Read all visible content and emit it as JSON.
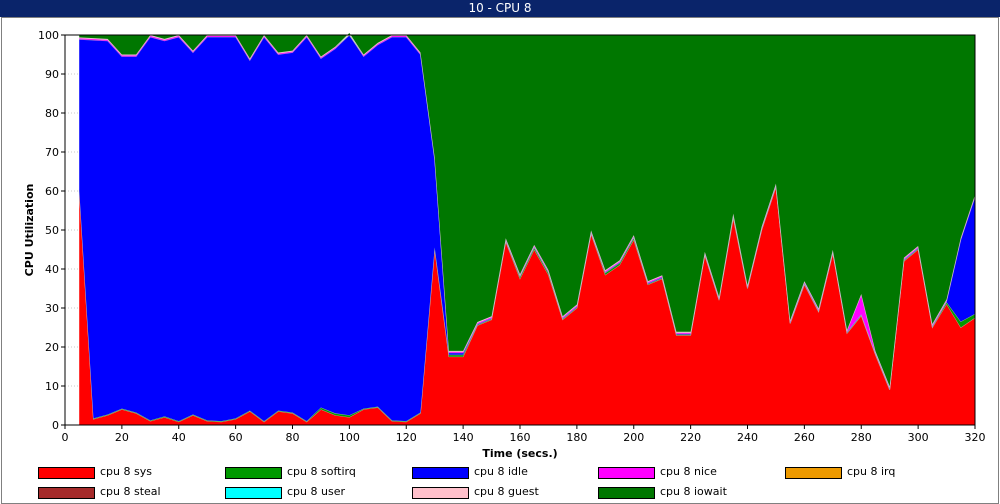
{
  "window": {
    "title": "10 - CPU 8"
  },
  "chart_data": {
    "type": "area",
    "title": "",
    "xlabel": "Time (secs.)",
    "ylabel": "CPU Utilization",
    "xlim": [
      0,
      320
    ],
    "ylim": [
      0,
      100
    ],
    "xticks": [
      0,
      20,
      40,
      60,
      80,
      100,
      120,
      140,
      160,
      180,
      200,
      220,
      240,
      260,
      280,
      300,
      320
    ],
    "yticks": [
      0,
      10,
      20,
      30,
      40,
      50,
      60,
      70,
      80,
      90,
      100
    ],
    "grid": true,
    "legend_position": "bottom",
    "stacked": true,
    "x": [
      5,
      10,
      15,
      20,
      25,
      30,
      35,
      40,
      45,
      50,
      55,
      60,
      65,
      70,
      75,
      80,
      85,
      90,
      95,
      100,
      105,
      110,
      115,
      120,
      125,
      130,
      135,
      140,
      145,
      150,
      155,
      160,
      165,
      170,
      175,
      180,
      185,
      190,
      195,
      200,
      205,
      210,
      215,
      220,
      225,
      230,
      235,
      240,
      245,
      250,
      255,
      260,
      265,
      270,
      275,
      280,
      285,
      290,
      295,
      300,
      305,
      310,
      315,
      320
    ],
    "series": [
      {
        "name": "cpu 8 sys",
        "color": "#ff0000",
        "values": [
          60,
          1.5,
          2.5,
          4,
          3,
          1,
          2,
          0.8,
          2.5,
          1,
          0.8,
          1.5,
          3.5,
          0.8,
          3.5,
          3,
          0.8,
          4,
          2.5,
          2,
          4,
          4.5,
          1,
          0.8,
          3,
          45,
          17.5,
          17.5,
          25.5,
          27,
          47,
          37.5,
          45,
          38.5,
          27,
          30,
          49,
          38.5,
          41,
          47.5,
          36,
          37.5,
          23,
          23,
          43.5,
          32,
          53,
          35,
          50,
          61,
          26,
          36,
          29,
          44,
          23.5,
          28,
          18,
          9,
          42,
          45,
          25,
          31,
          25,
          27.5
        ]
      },
      {
        "name": "cpu 8 softirq",
        "color": "#009900",
        "values": [
          0.3,
          0.2,
          0.2,
          0.2,
          0.2,
          0.2,
          0.2,
          0.2,
          0.2,
          0.2,
          0.2,
          0.2,
          0.2,
          0.2,
          0.2,
          0.2,
          0.2,
          0.5,
          0.5,
          0.5,
          0.2,
          0.2,
          0.2,
          0.2,
          0.2,
          0.5,
          0.5,
          0.5,
          0.2,
          0.2,
          0.2,
          0.5,
          0.5,
          0.5,
          0.2,
          0.2,
          0.2,
          0.5,
          0.5,
          0.5,
          0.2,
          0.2,
          0.2,
          0.2,
          0.2,
          0.2,
          0.5,
          0.2,
          0.2,
          0.2,
          0.2,
          0.2,
          0.2,
          0.2,
          0.2,
          0.2,
          0.2,
          0.2,
          0.2,
          0.2,
          0.2,
          0.5,
          1.5,
          1
        ]
      },
      {
        "name": "cpu 8 idle",
        "color": "#0000ff",
        "values": [
          38.6,
          97,
          95.8,
          90.3,
          91.3,
          98.3,
          96.3,
          98.5,
          92.8,
          98.3,
          98.5,
          97.8,
          89.8,
          98.5,
          91.3,
          92.3,
          98.5,
          89.5,
          93.5,
          97.5,
          90.3,
          92.8,
          98.3,
          98.5,
          91.8,
          22.6,
          0.5,
          0.5,
          0.2,
          0.2,
          0.2,
          0.2,
          0.2,
          0.2,
          0.2,
          0.2,
          0.2,
          0.2,
          0.2,
          0.2,
          0.2,
          0.2,
          0.2,
          0.2,
          0.2,
          0.2,
          0.2,
          0.2,
          0.2,
          0.2,
          0.2,
          0.2,
          0.2,
          0.2,
          0.2,
          0.2,
          0.2,
          0.2,
          0.2,
          0.2,
          0.2,
          0.2,
          21,
          30
        ]
      },
      {
        "name": "cpu 8 nice",
        "color": "#ff00ff",
        "values": [
          0.3,
          0.3,
          0.3,
          0.3,
          0.3,
          0.3,
          0.3,
          0.3,
          0.3,
          0.3,
          0.3,
          0.3,
          0.3,
          0.3,
          0.3,
          0.3,
          0.3,
          0.3,
          0.3,
          0.3,
          0.3,
          0.3,
          0.3,
          0.3,
          0.3,
          0.3,
          0.3,
          0.3,
          0.3,
          0.3,
          0.3,
          0.3,
          0.3,
          0.3,
          0.3,
          0.3,
          0.3,
          0.3,
          0.3,
          0.3,
          0.3,
          0.3,
          0.3,
          0.3,
          0.3,
          0.3,
          0.3,
          0.3,
          0.3,
          0.3,
          0.3,
          0.3,
          0.3,
          0.3,
          0.3,
          5,
          0.3,
          0.3,
          0.3,
          0.3,
          0.3,
          0.3,
          0.3,
          0.3
        ]
      },
      {
        "name": "cpu 8 irq",
        "color": "#ee9a00",
        "values": [
          0,
          0,
          0,
          0,
          0,
          0,
          0,
          0,
          0,
          0,
          0,
          0,
          0,
          0,
          0,
          0,
          0,
          0,
          0,
          0,
          0,
          0,
          0,
          0,
          0,
          0,
          0,
          0,
          0,
          0,
          0,
          0,
          0,
          0,
          0,
          0,
          0,
          0,
          0,
          0,
          0,
          0,
          0,
          0,
          0,
          0,
          0,
          0,
          0,
          0,
          0,
          0,
          0,
          0,
          0,
          0,
          0,
          0,
          0,
          0,
          0,
          0,
          0,
          0
        ]
      },
      {
        "name": "cpu 8 steal",
        "color": "#a52a2a",
        "values": [
          0,
          0,
          0,
          0,
          0,
          0,
          0,
          0,
          0,
          0,
          0,
          0,
          0,
          0,
          0,
          0,
          0,
          0,
          0,
          0,
          0,
          0,
          0,
          0,
          0,
          0,
          0,
          0,
          0,
          0,
          0,
          0,
          0,
          0,
          0,
          0,
          0,
          0,
          0,
          0,
          0,
          0,
          0,
          0,
          0,
          0,
          0,
          0,
          0,
          0,
          0,
          0,
          0,
          0,
          0,
          0,
          0,
          0,
          0,
          0,
          0,
          0,
          0,
          0
        ]
      },
      {
        "name": "cpu 8 user",
        "color": "#00ffff",
        "values": [
          0,
          0,
          0,
          0,
          0,
          0,
          0,
          0,
          0,
          0,
          0,
          0,
          0,
          0,
          0,
          0,
          0,
          0,
          0,
          0,
          0,
          0,
          0,
          0,
          0,
          0,
          0,
          0,
          0,
          0,
          0,
          0,
          0,
          0,
          0,
          0,
          0,
          0,
          0,
          0,
          0,
          0,
          0,
          0,
          0,
          0,
          0,
          0,
          0,
          0,
          0,
          0,
          0,
          0,
          0,
          0,
          0,
          0,
          0,
          0,
          0,
          0,
          0,
          0
        ]
      },
      {
        "name": "cpu 8 guest",
        "color": "#ffc0cb",
        "values": [
          0.2,
          0.2,
          0.2,
          0.2,
          0.2,
          0.2,
          0.2,
          0.2,
          0.2,
          0.2,
          0.2,
          0.2,
          0.2,
          0.2,
          0.2,
          0.2,
          0.2,
          0.2,
          0.2,
          0.2,
          0.2,
          0.2,
          0.2,
          0.2,
          0.2,
          0.2,
          0.2,
          0.2,
          0.2,
          0.2,
          0.2,
          0.2,
          0.2,
          0.2,
          0.2,
          0.2,
          0.2,
          0.2,
          0.2,
          0.2,
          0.2,
          0.2,
          0.2,
          0.2,
          0.2,
          0.2,
          0.2,
          0.2,
          0.2,
          0.2,
          0.2,
          0.2,
          0.2,
          0.2,
          0.2,
          0.2,
          0.2,
          0.2,
          0.2,
          0.2,
          0.2,
          0.2,
          0.2,
          0.2
        ]
      },
      {
        "name": "cpu 8 iowait",
        "color": "#007700",
        "values": [
          0.6,
          0.8,
          1,
          5,
          5,
          0,
          1,
          0,
          4,
          0,
          0,
          0,
          6,
          0,
          5,
          4,
          0,
          5.5,
          3,
          0,
          5,
          2,
          0,
          0,
          4.5,
          31.4,
          81.5,
          81.3,
          73.6,
          72.1,
          52.1,
          61.3,
          53.8,
          60.3,
          72.1,
          69.3,
          50.3,
          60.3,
          57.8,
          51.3,
          63.1,
          61.6,
          76.1,
          76.1,
          55.6,
          67.1,
          45.8,
          64.1,
          49.1,
          38.1,
          73.1,
          63.1,
          70.1,
          55.1,
          75.6,
          66.4,
          81.1,
          90.1,
          57.1,
          54.1,
          74.1,
          67.8,
          52,
          41
        ]
      }
    ]
  }
}
